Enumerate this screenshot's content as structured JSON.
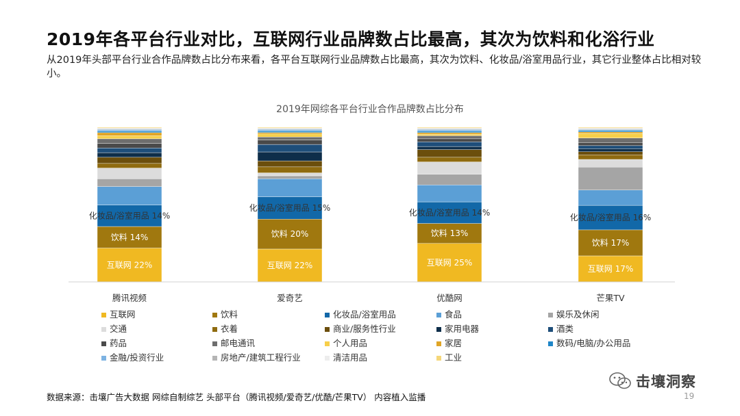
{
  "header": {
    "title": "2019年各平台行业对比，互联网行业品牌数占比最高，其次为饮料和化浴行业",
    "subtitle": "从2019年头部平台行业合作品牌数占比分布来看，各平台互联网行业品牌数占比最高，其次为饮料、化妆品/浴室用品行业，其它行业整体占比相对较小。"
  },
  "chart_data": {
    "type": "bar",
    "stacked": true,
    "title": "2019年网综各平台行业合作品牌数占比分布",
    "categories": [
      "腾讯视频",
      "爱奇艺",
      "优酷网",
      "芒果TV"
    ],
    "legend_position": "bottom",
    "series": [
      {
        "name": "互联网",
        "color": "#F0B922",
        "values": [
          22,
          22,
          25,
          17
        ],
        "labels": [
          "互联网 22%",
          "互联网 22%",
          "互联网 25%",
          "互联网 17%"
        ]
      },
      {
        "name": "饮料",
        "color": "#A0780F",
        "values": [
          14,
          20,
          13,
          17
        ],
        "labels": [
          "饮料 14%",
          "饮料 20%",
          "饮料 13%",
          "饮料 17%"
        ]
      },
      {
        "name": "化妆品/浴室用品",
        "color": "#1268A8",
        "values": [
          14,
          15,
          14,
          16
        ],
        "labels": [
          "化妆品/浴室用品 14%",
          "化妆品/浴室用品 15%",
          "化妆品/浴室用品 14%",
          "化妆品/浴室用品 16%"
        ]
      },
      {
        "name": "食品",
        "color": "#5B9FD6",
        "values": [
          12,
          12,
          11,
          10
        ],
        "labels": [
          "",
          "",
          "",
          ""
        ]
      },
      {
        "name": "娱乐及休闲",
        "color": "#A5A5A5",
        "values": [
          5,
          2,
          7,
          15
        ],
        "labels": [
          "",
          "",
          "",
          ""
        ]
      },
      {
        "name": "交通",
        "color": "#DCDCDC",
        "values": [
          7,
          2,
          8,
          5
        ],
        "labels": [
          "",
          "",
          "",
          ""
        ]
      },
      {
        "name": "衣着",
        "color": "#8F6B10",
        "values": [
          3,
          4,
          3,
          3
        ],
        "labels": [
          "",
          "",
          "",
          ""
        ]
      },
      {
        "name": "商业/服务性行业",
        "color": "#6B4E0C",
        "values": [
          4,
          4,
          5,
          2
        ],
        "labels": [
          "",
          "",
          "",
          ""
        ]
      },
      {
        "name": "家用电器",
        "color": "#0E2E4A",
        "values": [
          3,
          6,
          2,
          2
        ],
        "labels": [
          "",
          "",
          "",
          ""
        ]
      },
      {
        "name": "酒类",
        "color": "#1E4E7A",
        "values": [
          3,
          5,
          3,
          2
        ],
        "labels": [
          "",
          "",
          "",
          ""
        ]
      },
      {
        "name": "药品",
        "color": "#4A4A4A",
        "values": [
          3,
          3,
          2,
          2
        ],
        "labels": [
          "",
          "",
          "",
          ""
        ]
      },
      {
        "name": "邮电通讯",
        "color": "#6E6E6E",
        "values": [
          3,
          2,
          2,
          3
        ],
        "labels": [
          "",
          "",
          "",
          ""
        ]
      },
      {
        "name": "个人用品",
        "color": "#F7CF4A",
        "values": [
          2,
          2,
          1,
          3
        ],
        "labels": [
          "",
          "",
          "",
          ""
        ]
      },
      {
        "name": "家居",
        "color": "#E0A526",
        "values": [
          2,
          1,
          1,
          1
        ],
        "labels": [
          "",
          "",
          "",
          ""
        ]
      },
      {
        "name": "数码/电脑/办公用品",
        "color": "#1F86C8",
        "values": [
          1,
          1,
          1,
          1
        ],
        "labels": [
          "",
          "",
          "",
          ""
        ]
      },
      {
        "name": "金融/投资行业",
        "color": "#7DB3E2",
        "values": [
          1,
          1,
          1,
          0.5
        ],
        "labels": [
          "",
          "",
          "",
          ""
        ]
      },
      {
        "name": "房地产/建筑工程行业",
        "color": "#B5B5B5",
        "values": [
          0.5,
          0.5,
          0.5,
          0.5
        ],
        "labels": [
          "",
          "",
          "",
          ""
        ]
      },
      {
        "name": "清洁用品",
        "color": "#EDEDED",
        "values": [
          0.5,
          0.5,
          0.5,
          0.5
        ],
        "labels": [
          "",
          "",
          "",
          ""
        ]
      },
      {
        "name": "工业",
        "color": "#F5D77A",
        "values": [
          0.5,
          0.5,
          0.5,
          0.5
        ],
        "labels": [
          "",
          "",
          "",
          ""
        ]
      }
    ],
    "ylim": [
      0,
      100
    ],
    "grid": false
  },
  "footer": {
    "source": "数据来源：击壤广告大数据 网综自制综艺 头部平台（腾讯视频/爱奇艺/优酷/芒果TV） 内容植入监播",
    "page_number": "19",
    "watermark_text": "击壤洞察",
    "watermark_icon": "wechat-icon"
  }
}
